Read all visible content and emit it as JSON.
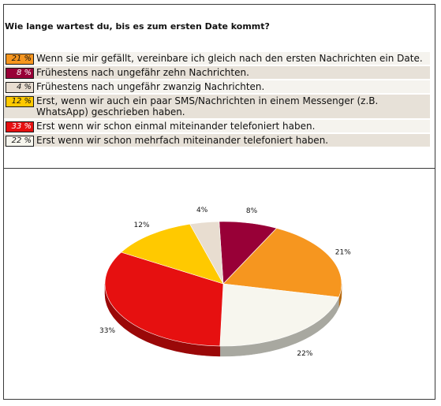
{
  "question": "Wie lange wartest du, bis es zum ersten Date kommt?",
  "colors": {
    "row_bg_odd": "#f5f3ee",
    "row_bg_even": "#e7e1d8"
  },
  "chart_data": {
    "type": "pie",
    "title": "",
    "series": [
      {
        "label": "Wenn sie mir gefällt, vereinbare ich gleich nach den ersten Nachrichten ein Date.",
        "value": 21,
        "pct_label": "21 %",
        "chart_label": "21%",
        "color": "#f6961f",
        "side": "#b76a10"
      },
      {
        "label": "Frühestens nach ungefähr zehn Nachrichten.",
        "value": 8,
        "pct_label": "8 %",
        "chart_label": "8%",
        "color": "#980037",
        "side": "#5e0022"
      },
      {
        "label": "Frühestens nach ungefähr zwanzig Nachrichten.",
        "value": 4,
        "pct_label": "4 %",
        "chart_label": "4%",
        "color": "#e8ddd0",
        "side": "#a59b90"
      },
      {
        "label": "Erst, wenn wir auch ein paar SMS/Nachrichten in einem Messenger (z.B. WhatsApp) geschrieben haben.",
        "value": 12,
        "pct_label": "12 %",
        "chart_label": "12%",
        "color": "#ffc900",
        "side": "#b58d00"
      },
      {
        "label": "Erst wenn wir schon einmal miteinander telefoniert haben.",
        "value": 33,
        "pct_label": "33 %",
        "chart_label": "33%",
        "color": "#e61010",
        "side": "#9a0808"
      },
      {
        "label": "Erst wenn wir schon mehrfach miteinander telefoniert haben.",
        "value": 22,
        "pct_label": "22 %",
        "chart_label": "22%",
        "color": "#f7f6ee",
        "side": "#a8a8a0"
      }
    ]
  }
}
